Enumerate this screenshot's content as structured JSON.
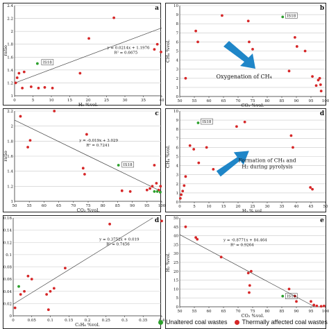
{
  "colors": {
    "untreated": "#2ca02c",
    "affected": "#d62728",
    "arrow": "#1f86c8"
  },
  "legend": {
    "untreated": "Unaltered coal wastes",
    "affected": "Thermally affected coal wastes"
  },
  "chart_data": [
    {
      "type": "scatter",
      "panel_label": "a",
      "xlabel": "H₂ %vol.",
      "ylabel": "ratio",
      "xlim": [
        0,
        40
      ],
      "ylim": [
        1.0,
        2.4
      ],
      "xticks": [
        0,
        5,
        10,
        15,
        20,
        25,
        30,
        35,
        40
      ],
      "yticks": [
        1.0,
        1.2,
        1.4,
        1.6,
        1.8,
        2.0,
        2.2,
        2.4
      ],
      "series": [
        {
          "group": "affected",
          "points": [
            [
              0.3,
              1.2
            ],
            [
              0.7,
              1.28
            ],
            [
              1.2,
              1.35
            ],
            [
              2.1,
              1.12
            ],
            [
              2.6,
              1.37
            ],
            [
              4.5,
              1.14
            ],
            [
              6.5,
              1.12
            ],
            [
              8.2,
              1.13
            ],
            [
              10.3,
              1.12
            ],
            [
              17.8,
              1.35
            ],
            [
              20.2,
              1.89
            ],
            [
              27.0,
              2.21
            ],
            [
              38.0,
              1.72
            ],
            [
              38.8,
              1.8
            ],
            [
              39.8,
              1.68
            ]
          ]
        },
        {
          "group": "untreated",
          "points": [
            [
              6.2,
              1.5
            ]
          ]
        }
      ],
      "trendline": {
        "slope": 0.0214,
        "intercept": 1.1976
      },
      "equation_text": "y = 0.0214x + 1.1976",
      "r2_text": "R² = 0.6675",
      "annotation": {
        "text": "IS18",
        "x": 6.2,
        "y": 1.5
      }
    },
    {
      "type": "scatter",
      "panel_label": "b",
      "xlabel": "CO₂ %vol.",
      "ylabel": "CH₄ %vol.",
      "xlim": [
        50,
        100
      ],
      "ylim": [
        0,
        10
      ],
      "xticks": [
        50,
        55,
        60,
        65,
        70,
        75,
        80,
        85,
        90,
        95,
        100
      ],
      "yticks": [
        0,
        1,
        2,
        3,
        4,
        5,
        6,
        7,
        8,
        9,
        10
      ],
      "series": [
        {
          "group": "affected",
          "points": [
            [
              52,
              2.0
            ],
            [
              55.5,
              7.2
            ],
            [
              56.2,
              6.0
            ],
            [
              64.5,
              8.9
            ],
            [
              73.5,
              8.3
            ],
            [
              73.8,
              6.0
            ],
            [
              75,
              5.2
            ],
            [
              87.5,
              2.8
            ],
            [
              89.5,
              6.5
            ],
            [
              90.2,
              5.5
            ],
            [
              93,
              5.0
            ],
            [
              95.5,
              2.2
            ],
            [
              96.8,
              1.2
            ],
            [
              97.5,
              1.8
            ],
            [
              98,
              2.0
            ],
            [
              98.3,
              1.3
            ],
            [
              98.5,
              0.6
            ]
          ]
        },
        {
          "group": "untreated",
          "points": [
            [
              85.3,
              8.75
            ]
          ]
        }
      ],
      "annotation": {
        "text": "IS18",
        "x": 85.3,
        "y": 8.75
      },
      "arrow_text": "Oxygenation of CH₄"
    },
    {
      "type": "scatter",
      "panel_label": "c",
      "xlabel": "CO₂ %vol.",
      "ylabel": "ratio",
      "xlim": [
        50,
        100
      ],
      "ylim": [
        1.0,
        2.2
      ],
      "xticks": [
        50,
        55,
        60,
        65,
        70,
        75,
        80,
        85,
        90,
        95,
        100
      ],
      "yticks": [
        1.0,
        1.2,
        1.4,
        1.6,
        1.8,
        2.0,
        2.2
      ],
      "series": [
        {
          "group": "affected",
          "points": [
            [
              52,
              2.13
            ],
            [
              54.5,
              1.72
            ],
            [
              55.3,
              1.81
            ],
            [
              63.5,
              2.2
            ],
            [
              73.3,
              1.44
            ],
            [
              73.8,
              1.36
            ],
            [
              74.5,
              1.89
            ],
            [
              86.5,
              1.14
            ],
            [
              89.3,
              1.13
            ],
            [
              95,
              1.15
            ],
            [
              96,
              1.17
            ],
            [
              96.8,
              1.2
            ],
            [
              97.5,
              1.48
            ],
            [
              98.2,
              1.24
            ],
            [
              99,
              1.15
            ],
            [
              99.6,
              1.2
            ]
          ]
        },
        {
          "group": "untreated",
          "points": [
            [
              85.3,
              1.48
            ],
            [
              97.5,
              1.13
            ],
            [
              98.5,
              1.13
            ],
            [
              99.5,
              1.12
            ]
          ]
        }
      ],
      "trendline": {
        "slope": -0.019,
        "intercept": 3.029
      },
      "equation_text": "y = -0.019x + 3.029",
      "r2_text": "R² = 0.7241",
      "annotation": {
        "text": "IS18",
        "x": 85.3,
        "y": 1.48
      }
    },
    {
      "type": "scatter",
      "panel_label": "d",
      "xlabel": "H₂ % vol.",
      "ylabel": "CH₄ %vol.",
      "xlim": [
        0,
        50
      ],
      "ylim": [
        0,
        10
      ],
      "xticks": [
        0,
        5,
        10,
        15,
        20,
        25,
        30,
        35,
        40,
        45,
        50
      ],
      "yticks": [
        0,
        1,
        2,
        3,
        4,
        5,
        6,
        7,
        8,
        9,
        10
      ],
      "series": [
        {
          "group": "affected",
          "points": [
            [
              0.2,
              0.4
            ],
            [
              0.5,
              0.8
            ],
            [
              1.0,
              1.2
            ],
            [
              1.5,
              1.8
            ],
            [
              2.0,
              2.8
            ],
            [
              3.5,
              6.2
            ],
            [
              4.8,
              5.8
            ],
            [
              6.5,
              4.3
            ],
            [
              9.2,
              6.0
            ],
            [
              11.5,
              3.6
            ],
            [
              19.5,
              8.3
            ],
            [
              22.3,
              8.8
            ],
            [
              38.2,
              7.3
            ],
            [
              38.8,
              6.0
            ],
            [
              44.8,
              1.6
            ],
            [
              45.5,
              1.4
            ]
          ]
        },
        {
          "group": "untreated",
          "points": [
            [
              6.3,
              8.7
            ]
          ]
        }
      ],
      "annotation": {
        "text": "IS18",
        "x": 6.3,
        "y": 8.7
      },
      "arrow_text_1": "Formation of CH₄ and",
      "arrow_text_2": "H₂ during pyrolysis"
    },
    {
      "type": "scatter",
      "panel_label": "d",
      "xlabel": "C₂H₆ %vol.",
      "ylabel": "",
      "xlim": [
        0,
        0.4
      ],
      "ylim": [
        0,
        0.16
      ],
      "xticks": [
        0,
        0.05,
        0.1,
        0.15,
        0.2,
        0.25,
        0.3,
        0.35,
        0.4
      ],
      "yticks": [
        0,
        0.02,
        0.04,
        0.06,
        0.08,
        0.1,
        0.12,
        0.14,
        0.16
      ],
      "series": [
        {
          "group": "affected",
          "points": [
            [
              0.005,
              0.013
            ],
            [
              0.02,
              0.035
            ],
            [
              0.03,
              0.04
            ],
            [
              0.04,
              0.065
            ],
            [
              0.05,
              0.06
            ],
            [
              0.09,
              0.035
            ],
            [
              0.095,
              0.01
            ],
            [
              0.1,
              0.04
            ],
            [
              0.11,
              0.045
            ],
            [
              0.14,
              0.078
            ],
            [
              0.26,
              0.15
            ],
            [
              0.4,
              0.155
            ]
          ]
        },
        {
          "group": "untreated",
          "points": [
            [
              0.015,
              0.048
            ]
          ]
        }
      ],
      "trendline": {
        "slope": 0.3752,
        "intercept": 0.019
      },
      "equation_text": "y = 0.3752x + 0.019",
      "r2_text": "R² = 0.7456"
    },
    {
      "type": "scatter",
      "panel_label": "e",
      "xlabel": "CO₂ %vol.",
      "ylabel": "H₂ %vol.",
      "xlim": [
        50,
        100
      ],
      "ylim": [
        0,
        50
      ],
      "xticks": [
        50,
        55,
        60,
        65,
        70,
        75,
        80,
        85,
        90,
        95,
        100
      ],
      "yticks": [
        0,
        5,
        10,
        15,
        20,
        25,
        30,
        35,
        40,
        45,
        50
      ],
      "series": [
        {
          "group": "affected",
          "points": [
            [
              52,
              45
            ],
            [
              55.5,
              39
            ],
            [
              56,
              38
            ],
            [
              64.2,
              28
            ],
            [
              73.5,
              19
            ],
            [
              74,
              12
            ],
            [
              74.5,
              20
            ],
            [
              73.8,
              8
            ],
            [
              87.5,
              10
            ],
            [
              89.5,
              6
            ],
            [
              90,
              3
            ],
            [
              95,
              3
            ],
            [
              96,
              1
            ],
            [
              97,
              0.5
            ],
            [
              98.5,
              0.3
            ],
            [
              99.5,
              0.5
            ]
          ]
        },
        {
          "group": "untreated",
          "points": [
            [
              85.3,
              6.0
            ]
          ]
        }
      ],
      "trendline": {
        "slope": -0.8771,
        "intercept": 84.464
      },
      "equation_text": "y = -0.8771x + 84.464",
      "r2_text": "R² = 0.9264",
      "annotation": {
        "text": "IS18",
        "x": 85.3,
        "y": 6.0
      }
    }
  ]
}
